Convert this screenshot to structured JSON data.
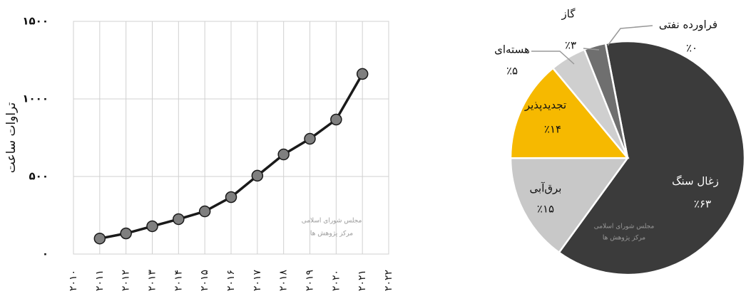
{
  "chart_data": [
    {
      "type": "line",
      "y_label": "تراوات ساعت",
      "categories": [
        "۲۰۱۰",
        "۲۰۱۱",
        "۲۰۱۲",
        "۲۰۱۳",
        "۲۰۱۴",
        "۲۰۱۵",
        "۲۰۱۶",
        "۲۰۱۷",
        "۲۰۱۸",
        "۲۰۱۹",
        "۲۰۲۰",
        "۲۰۲۱",
        "۲۰۲۲"
      ],
      "values": [
        null,
        100,
        133,
        179,
        225,
        275,
        367,
        505,
        642,
        743,
        867,
        1161,
        null
      ],
      "color": "#1a1a1a",
      "marker_color": "#7f7f7f",
      "ylim": [
        0,
        1500
      ],
      "yticks": [
        {
          "value": 0,
          "label": "۰"
        },
        {
          "value": 500,
          "label": "۵۰۰"
        },
        {
          "value": 1000,
          "label": "۱۰۰۰"
        },
        {
          "value": 1500,
          "label": "۱۵۰۰"
        }
      ],
      "grid": true,
      "watermark": [
        "مجلس شورای اسلامی",
        "مرکز پژوهش ها"
      ]
    },
    {
      "type": "pie",
      "categories": [
        "زغال سنگ",
        "برق‌آبی",
        "تجدیدپذیر",
        "هسته‌ای",
        "گاز",
        "فراورده نفتی"
      ],
      "values": [
        63,
        15,
        14,
        5,
        3,
        0
      ],
      "value_labels": [
        "٪۶۳",
        "٪۱۵",
        "٪۱۴",
        "٪۵",
        "٪۳",
        "٪۰"
      ],
      "colors": [
        "#3b3b3b",
        "#c8c8c8",
        "#f6b900",
        "#cfcfcf",
        "#6f6f6f",
        "#a0a0a0"
      ],
      "watermark": [
        "مجلس شورای اسلامی",
        "مرکز پژوهش ها"
      ]
    }
  ]
}
